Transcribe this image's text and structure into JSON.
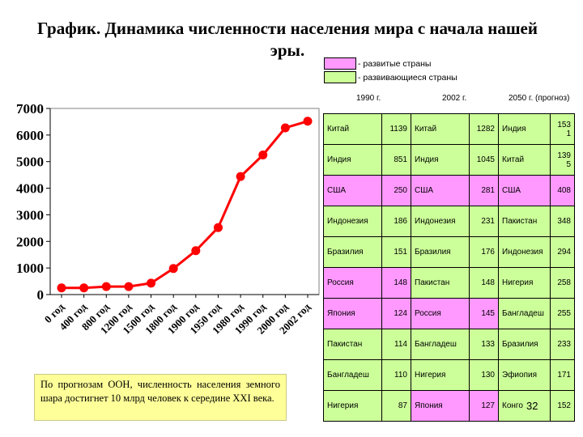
{
  "title": "График. Динамика численности населения мира с начала нашей эры.",
  "legend": {
    "developed": {
      "label": "- развитые страны",
      "color": "#ff99ff"
    },
    "developing": {
      "label": "- развивающиеся страны",
      "color": "#ccff99"
    }
  },
  "note": "По прогнозам ООН, численность населения земного шара достигнет 10 млрд человек к середине XXI века.",
  "table": {
    "headers": [
      "1990 г.",
      "2002 г.",
      "2050 г. (прогноз)"
    ],
    "rows": [
      {
        "c1": "Китай",
        "v1": "1139",
        "c2": "Китай",
        "v2": "1282",
        "c3": "Индия",
        "v3": "153 1",
        "t1": "green",
        "t2": "green",
        "t3": "green"
      },
      {
        "c1": "Индия",
        "v1": "851",
        "c2": "Индия",
        "v2": "1045",
        "c3": "Китай",
        "v3": "139 5",
        "t1": "green",
        "t2": "green",
        "t3": "green"
      },
      {
        "c1": "США",
        "v1": "250",
        "c2": "США",
        "v2": "281",
        "c3": "США",
        "v3": "408",
        "t1": "pink",
        "t2": "pink",
        "t3": "pink"
      },
      {
        "c1": "Индонезия",
        "v1": "186",
        "c2": "Индонезия",
        "v2": "231",
        "c3": "Пакистан",
        "v3": "348",
        "t1": "green",
        "t2": "green",
        "t3": "green"
      },
      {
        "c1": "Бразилия",
        "v1": "151",
        "c2": "Бразилия",
        "v2": "176",
        "c3": "Индонезия",
        "v3": "294",
        "t1": "green",
        "t2": "green",
        "t3": "green"
      },
      {
        "c1": "Россия",
        "v1": "148",
        "c2": "Пакистан",
        "v2": "148",
        "c3": "Нигерия",
        "v3": "258",
        "t1": "pink",
        "t2": "green",
        "t3": "green"
      },
      {
        "c1": "Япония",
        "v1": "124",
        "c2": "Россия",
        "v2": "145",
        "c3": "Бангладеш",
        "v3": "255",
        "t1": "pink",
        "t2": "pink",
        "t3": "green"
      },
      {
        "c1": "Пакистан",
        "v1": "114",
        "c2": "Бангладеш",
        "v2": "133",
        "c3": "Бразилия",
        "v3": "233",
        "t1": "green",
        "t2": "green",
        "t3": "green"
      },
      {
        "c1": "Бангладеш",
        "v1": "110",
        "c2": "Нигерия",
        "v2": "130",
        "c3": "Эфиопия",
        "v3": "171",
        "t1": "green",
        "t2": "green",
        "t3": "green"
      },
      {
        "c1": "Нигерия",
        "v1": "87",
        "c2": "Япония",
        "v2": "127",
        "c3": "Конго",
        "v3": "152",
        "t1": "green",
        "t2": "pink",
        "t3": "green"
      }
    ]
  },
  "page_number": "32",
  "chart_data": {
    "type": "line",
    "title": "",
    "xlabel": "",
    "ylabel": "",
    "categories": [
      "0 год",
      "400 год",
      "800 год",
      "1200 год",
      "1500 год",
      "1800 год",
      "1900 год",
      "1950 год",
      "1980 год",
      "1990 год",
      "2000 год",
      "2002 год"
    ],
    "series": [
      {
        "values": [
          250,
          250,
          300,
          300,
          430,
          980,
          1650,
          2520,
          4440,
          5250,
          6270,
          6520
        ]
      }
    ],
    "ylim": [
      0,
      7000
    ],
    "yticks": [
      0,
      1000,
      2000,
      3000,
      4000,
      5000,
      6000,
      7000
    ],
    "line_color": "#ff0000",
    "grid": false,
    "plot_background": "#ffffff"
  }
}
